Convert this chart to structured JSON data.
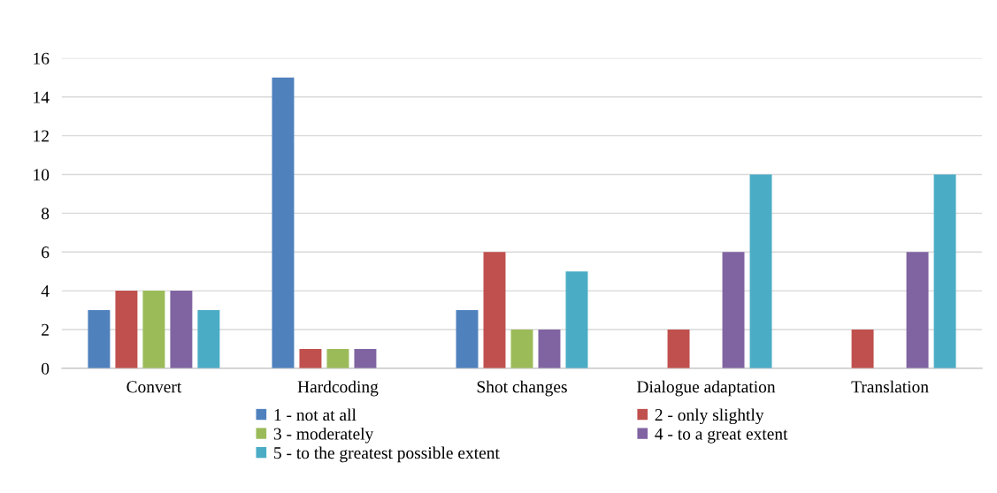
{
  "chart_data": {
    "type": "bar",
    "categories": [
      "Convert",
      "Hardcoding",
      "Shot changes",
      "Dialogue adaptation",
      "Translation"
    ],
    "series": [
      {
        "name": "1 - not at all",
        "color": "#4f81bd",
        "values": [
          3,
          15,
          3,
          0,
          0
        ]
      },
      {
        "name": "2 - only slightly",
        "color": "#c0504d",
        "values": [
          4,
          1,
          6,
          2,
          2
        ]
      },
      {
        "name": "3 - moderately",
        "color": "#9bbb59",
        "values": [
          4,
          1,
          2,
          0,
          0
        ]
      },
      {
        "name": "4 - to a great extent",
        "color": "#8064a2",
        "values": [
          4,
          1,
          2,
          6,
          6
        ]
      },
      {
        "name": "5 - to the greatest possible extent",
        "color": "#4bacc6",
        "values": [
          3,
          0,
          5,
          10,
          10
        ]
      }
    ],
    "ylim": [
      0,
      16
    ],
    "yticks": [
      0,
      2,
      4,
      6,
      8,
      10,
      12,
      14,
      16
    ],
    "grid": "y",
    "legend": "bottom"
  }
}
